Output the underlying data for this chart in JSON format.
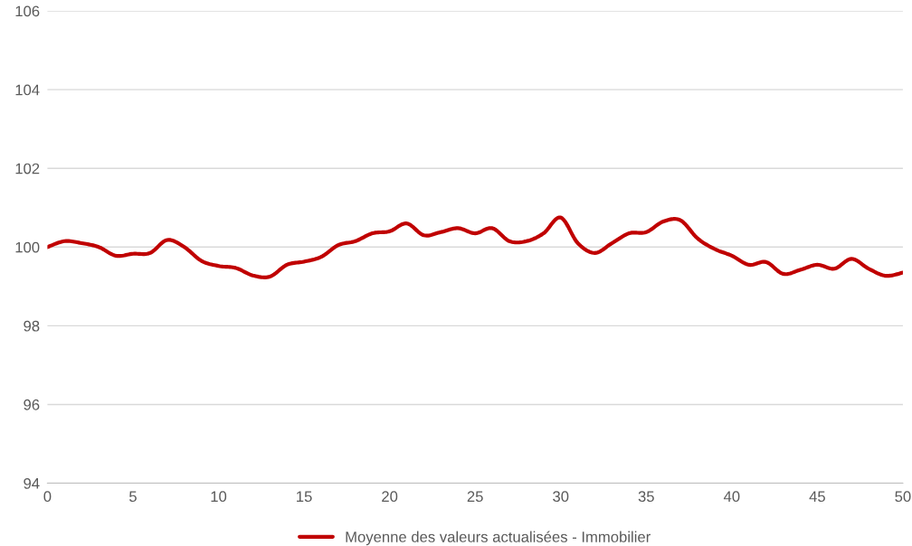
{
  "chart_data": {
    "type": "line",
    "x": [
      0,
      1,
      2,
      3,
      4,
      5,
      6,
      7,
      8,
      9,
      10,
      11,
      12,
      13,
      14,
      15,
      16,
      17,
      18,
      19,
      20,
      21,
      22,
      23,
      24,
      25,
      26,
      27,
      28,
      29,
      30,
      31,
      32,
      33,
      34,
      35,
      36,
      37,
      38,
      39,
      40,
      41,
      42,
      43,
      44,
      45,
      46,
      47,
      48,
      49,
      50
    ],
    "series": [
      {
        "name": "Moyenne des valeurs actualisées - Immobilier",
        "color": "#c00000",
        "values": [
          100.0,
          100.15,
          100.1,
          100.0,
          99.78,
          99.83,
          99.85,
          100.18,
          100.0,
          99.65,
          99.52,
          99.47,
          99.28,
          99.25,
          99.55,
          99.63,
          99.75,
          100.05,
          100.15,
          100.35,
          100.4,
          100.6,
          100.3,
          100.38,
          100.48,
          100.35,
          100.48,
          100.15,
          100.15,
          100.35,
          100.75,
          100.1,
          99.85,
          100.1,
          100.35,
          100.38,
          100.65,
          100.68,
          100.22,
          99.95,
          99.78,
          99.55,
          99.62,
          99.32,
          99.42,
          99.55,
          99.45,
          99.7,
          99.45,
          99.27,
          99.35
        ]
      }
    ],
    "xlim": [
      0,
      50
    ],
    "xticks": [
      0,
      5,
      10,
      15,
      20,
      25,
      30,
      35,
      40,
      45,
      50
    ],
    "ylim": [
      94,
      106
    ],
    "yticks": [
      94,
      96,
      98,
      100,
      102,
      104,
      106
    ],
    "grid": "y",
    "legend": "bottom",
    "line_style": "solid",
    "marker": "none"
  }
}
